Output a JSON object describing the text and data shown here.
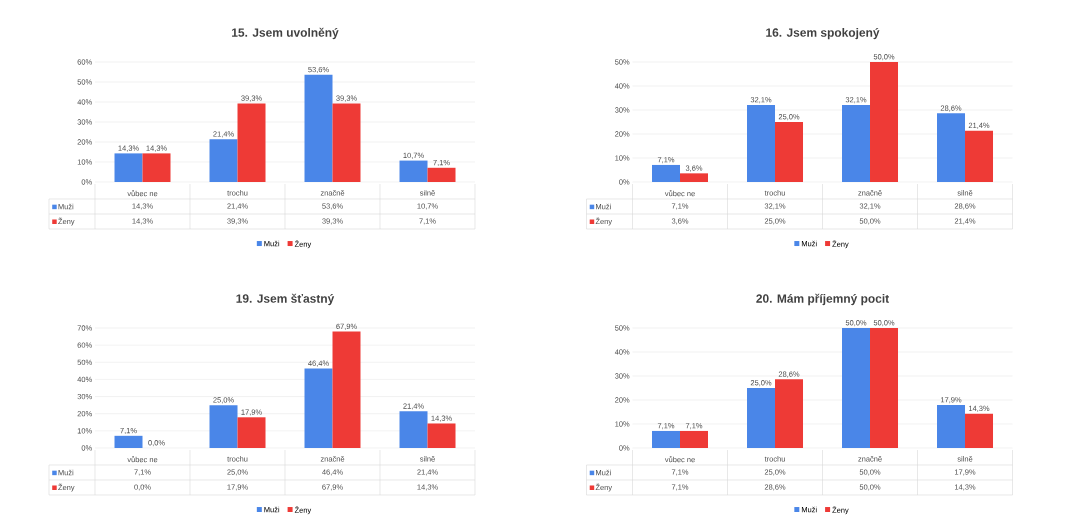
{
  "chart_data": [
    {
      "type": "bar",
      "title": "15. Jsem uvolněný",
      "categories": [
        "vůbec ne",
        "trochu",
        "značně",
        "silně"
      ],
      "series": [
        {
          "name": "Muži",
          "color": "#4a86e8",
          "values": [
            14.3,
            21.4,
            53.6,
            10.7
          ],
          "value_labels": [
            "14,3%",
            "21,4%",
            "53,6%",
            "10,7%"
          ]
        },
        {
          "name": "Ženy",
          "color": "#ee3a36",
          "values": [
            14.3,
            39.3,
            39.3,
            7.1
          ],
          "value_labels": [
            "14,3%",
            "39,3%",
            "39,3%",
            "7,1%"
          ]
        }
      ],
      "ylim": [
        0,
        60
      ],
      "yticks": [
        {
          "value": 0,
          "label": "0%"
        },
        {
          "value": 10,
          "label": "10%"
        },
        {
          "value": 20,
          "label": "20%"
        },
        {
          "value": 30,
          "label": "30%"
        },
        {
          "value": 40,
          "label": "40%"
        },
        {
          "value": 50,
          "label": "50%"
        },
        {
          "value": 60,
          "label": "60%"
        }
      ],
      "grid": "y",
      "legend": "bottom"
    },
    {
      "type": "bar",
      "title": "16. Jsem spokojený",
      "categories": [
        "vůbec ne",
        "trochu",
        "značně",
        "silně"
      ],
      "series": [
        {
          "name": "Muži",
          "color": "#4a86e8",
          "values": [
            7.1,
            32.1,
            32.1,
            28.6
          ],
          "value_labels": [
            "7,1%",
            "32,1%",
            "32,1%",
            "28,6%"
          ]
        },
        {
          "name": "Ženy",
          "color": "#ee3a36",
          "values": [
            3.6,
            25.0,
            50.0,
            21.4
          ],
          "value_labels": [
            "3,6%",
            "25,0%",
            "50,0%",
            "21,4%"
          ]
        }
      ],
      "ylim": [
        0,
        50
      ],
      "yticks": [
        {
          "value": 0,
          "label": "0%"
        },
        {
          "value": 10,
          "label": "10%"
        },
        {
          "value": 20,
          "label": "20%"
        },
        {
          "value": 30,
          "label": "30%"
        },
        {
          "value": 40,
          "label": "40%"
        },
        {
          "value": 50,
          "label": "50%"
        }
      ],
      "grid": "y",
      "legend": "bottom"
    },
    {
      "type": "bar",
      "title": "19. Jsem šťastný",
      "categories": [
        "vůbec ne",
        "trochu",
        "značně",
        "silně"
      ],
      "series": [
        {
          "name": "Muži",
          "color": "#4a86e8",
          "values": [
            7.1,
            25.0,
            46.4,
            21.4
          ],
          "value_labels": [
            "7,1%",
            "25,0%",
            "46,4%",
            "21,4%"
          ]
        },
        {
          "name": "Ženy",
          "color": "#ee3a36",
          "values": [
            0.0,
            17.9,
            67.9,
            14.3
          ],
          "value_labels": [
            "0,0%",
            "17,9%",
            "67,9%",
            "14,3%"
          ]
        }
      ],
      "ylim": [
        0,
        70
      ],
      "yticks": [
        {
          "value": 0,
          "label": "0%"
        },
        {
          "value": 10,
          "label": "10%"
        },
        {
          "value": 20,
          "label": "20%"
        },
        {
          "value": 30,
          "label": "30%"
        },
        {
          "value": 40,
          "label": "40%"
        },
        {
          "value": 50,
          "label": "50%"
        },
        {
          "value": 60,
          "label": "60%"
        },
        {
          "value": 70,
          "label": "70%"
        }
      ],
      "grid": "y",
      "legend": "bottom"
    },
    {
      "type": "bar",
      "title": "20. Mám příjemný pocit",
      "categories": [
        "vůbec ne",
        "trochu",
        "značně",
        "silně"
      ],
      "series": [
        {
          "name": "Muži",
          "color": "#4a86e8",
          "values": [
            7.1,
            25.0,
            50.0,
            17.9
          ],
          "value_labels": [
            "7,1%",
            "25,0%",
            "50,0%",
            "17,9%"
          ]
        },
        {
          "name": "Ženy",
          "color": "#ee3a36",
          "values": [
            7.1,
            28.6,
            50.0,
            14.3
          ],
          "value_labels": [
            "7,1%",
            "28,6%",
            "50,0%",
            "14,3%"
          ]
        }
      ],
      "ylim": [
        0,
        50
      ],
      "yticks": [
        {
          "value": 0,
          "label": "0%"
        },
        {
          "value": 10,
          "label": "10%"
        },
        {
          "value": 20,
          "label": "20%"
        },
        {
          "value": 30,
          "label": "30%"
        },
        {
          "value": 40,
          "label": "40%"
        },
        {
          "value": 50,
          "label": "50%"
        }
      ],
      "grid": "y",
      "legend": "bottom"
    }
  ]
}
